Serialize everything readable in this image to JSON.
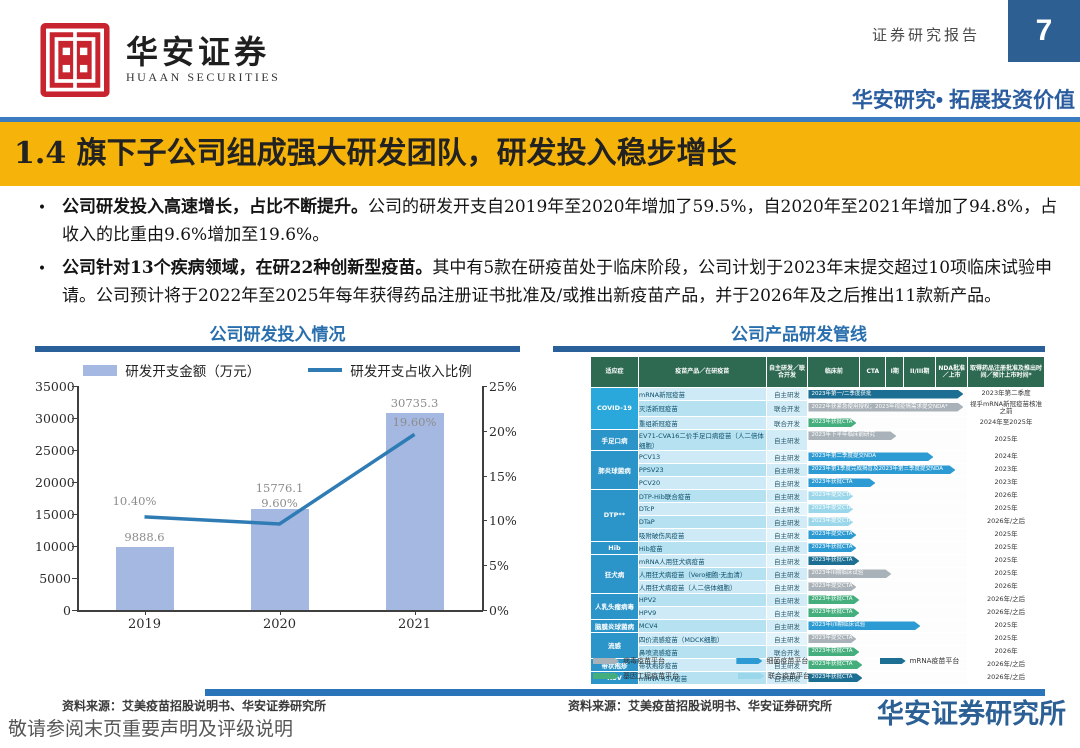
{
  "header": {
    "logo_cn": "华安证券",
    "logo_en": "HUAAN SECURITIES",
    "report_type": "证券研究报告",
    "page_number": "7",
    "tagline": "华安研究• 拓展投资价值"
  },
  "title_banner": "1.4 旗下子公司组成强大研发团队，研发投入稳步增长",
  "bullets": [
    {
      "bold": "公司研发投入高速增长，占比不断提升。",
      "text": "公司的研发开支自2019年至2020年增加了59.5%，自2020年至2021年增加了94.8%，占收入的比重由9.6%增加至19.6%。"
    },
    {
      "bold": "公司针对13个疾病领域，在研22种创新型疫苗。",
      "text": "其中有5款在研疫苗处于临床阶段，公司计划于2023年末提交超过10项临床试验申请。公司预计将于2022年至2025年每年获得药品注册证书批准及/或推出新疫苗产品，并于2026年及之后推出11款新产品。"
    }
  ],
  "chart_data": {
    "type": "bar+line",
    "title": "公司研发投入情况",
    "categories": [
      "2019",
      "2020",
      "2021"
    ],
    "series": [
      {
        "name": "研发开支金额（万元）",
        "type": "bar",
        "values": [
          9888.6,
          15776.1,
          30735.3
        ],
        "color": "#a5b8e1"
      },
      {
        "name": "研发开支占收入比例",
        "type": "line",
        "values": [
          10.4,
          9.6,
          19.6
        ],
        "color": "#2f7cb5"
      }
    ],
    "bar_labels": [
      "9888.6",
      "15776.1",
      "30735.3"
    ],
    "line_labels": [
      "10.40%",
      "9.60%",
      "19.60%"
    ],
    "left_axis": {
      "min": 0,
      "max": 35000,
      "ticks": [
        "0",
        "5000",
        "10000",
        "15000",
        "20000",
        "25000",
        "30000",
        "35000"
      ]
    },
    "right_axis": {
      "min": 0,
      "max": 25,
      "ticks": [
        "0%",
        "5%",
        "10%",
        "15%",
        "20%",
        "25%"
      ]
    },
    "legend_position": "top",
    "grid": false
  },
  "figures": {
    "left": {
      "title": "公司研发投入情况",
      "source": "资料来源：艾美疫苗招股说明书、华安证券研究所"
    },
    "right": {
      "title": "公司产品研发管线",
      "source": "资料来源：艾美疫苗招股说明书、华安证券研究所",
      "platform_colors": {
        "virus": "#a9b2b8",
        "bact": "#2d9bd3",
        "mrna": "#1c6e92",
        "gene": "#44ae7c",
        "combo": "#9bd7ea"
      },
      "group_colors": {
        "first": "#2aa7db",
        "rest": "#2b94c8"
      },
      "legend": [
        {
          "label": "病毒疫苗平台",
          "key": "virus"
        },
        {
          "label": "细菌疫苗平台",
          "key": "bact"
        },
        {
          "label": "mRNA疫苗平台",
          "key": "mrna"
        },
        {
          "label": "基因工程疫苗平台",
          "key": "gene"
        },
        {
          "label": "联合疫苗平台",
          "key": "combo"
        }
      ],
      "table": {
        "headers": [
          "适应症",
          "疫苗产品／在研疫苗",
          "自主研发／联合开发",
          "临床前",
          "CTA",
          "I期",
          "II/III期",
          "NDA批准／上市",
          "取得药品注册批准及推出时间／预计上市时间*"
        ],
        "rows": [
          {
            "group": "COVID-19",
            "group_span": 3,
            "product": "mRNA新冠疫苗",
            "mode": "自主研发",
            "platform": "mrna",
            "progress": 0.97,
            "stage_label": "2023年第一/二季度获批",
            "timing": "2023年第二季度"
          },
          {
            "product": "灭活新冠疫苗",
            "mode": "联合开发",
            "platform": "virus",
            "progress": 0.97,
            "stage_label": "2022年获紧急使用授权；2023年视疫情需求提交NDA*",
            "timing": "视乎mRNA新冠疫苗核准之前"
          },
          {
            "product": "重组新冠疫苗",
            "mode": "联合开发",
            "platform": "gene",
            "progress": 0.3,
            "stage_label": "2023年获批CTA",
            "timing": "2024年至2025年"
          },
          {
            "group": "手足口病",
            "group_span": 1,
            "product": "EV71-CVA16二价手足口病疫苗（人二倍体细胞）",
            "mode": "自主研发",
            "platform": "virus",
            "progress": 0.55,
            "stage_label": "2023年下半年临床前研究",
            "timing": "2025年"
          },
          {
            "group": "肺炎球菌病",
            "group_span": 3,
            "product": "PCV13",
            "mode": "自主研发",
            "platform": "bact",
            "progress": 0.78,
            "stage_label": "2023年第二季度提交NDA",
            "timing": "2024年"
          },
          {
            "product": "PPSV23",
            "mode": "自主研发",
            "platform": "bact",
            "progress": 0.92,
            "stage_label": "2023年第1季度完成揭盲及2023年第三季度提交NDA",
            "timing": "2023年"
          },
          {
            "product": "PCV20",
            "mode": "自主研发",
            "platform": "bact",
            "progress": 0.42,
            "stage_label": "2023年获批CTA",
            "timing": "2023年"
          },
          {
            "group": "DTP**",
            "group_span": 4,
            "product": "DTP-Hib联合疫苗",
            "mode": "自主研发",
            "platform": "combo",
            "progress": 0.28,
            "stage_label": "2023年提交CTA",
            "timing": "2026年"
          },
          {
            "product": "DTcP",
            "mode": "自主研发",
            "platform": "combo",
            "progress": 0.28,
            "stage_label": "2023年提交CTA",
            "timing": "2025年"
          },
          {
            "product": "DTaP",
            "mode": "自主研发",
            "platform": "combo",
            "progress": 0.28,
            "stage_label": "2023年提交CTA",
            "timing": "2026年/之后"
          },
          {
            "product": "吸附破伤风疫苗",
            "mode": "自主研发",
            "platform": "bact",
            "progress": 0.3,
            "stage_label": "2023年提交CTA",
            "timing": "2025年"
          },
          {
            "group": "Hib",
            "group_span": 1,
            "product": "Hib疫苗",
            "mode": "自主研发",
            "platform": "bact",
            "progress": 0.3,
            "stage_label": "2023年获批CTA",
            "timing": "2025年"
          },
          {
            "group": "狂犬病",
            "group_span": 3,
            "product": "mRNA人用狂犬病疫苗",
            "mode": "自主研发",
            "platform": "mrna",
            "progress": 0.32,
            "stage_label": "2023年获批CTA",
            "timing": "2025年"
          },
          {
            "product": "人用狂犬病疫苗（Vero细胞·无血清）",
            "mode": "自主研发",
            "platform": "virus",
            "progress": 0.52,
            "stage_label": "2023年III期临床试验",
            "timing": "2025年"
          },
          {
            "product": "人用狂犬病疫苗（人二倍体细胞）",
            "mode": "自主研发",
            "platform": "virus",
            "progress": 0.3,
            "stage_label": "2023年提交CTA",
            "timing": "2026年"
          },
          {
            "group": "人乳头瘤病毒",
            "group_span": 2,
            "product": "HPV2",
            "mode": "自主研发",
            "platform": "gene",
            "progress": 0.32,
            "stage_label": "2023年获批CTA",
            "timing": "2026年/之后"
          },
          {
            "product": "HPV9",
            "mode": "自主研发",
            "platform": "gene",
            "progress": 0.32,
            "stage_label": "2023年获批CTA",
            "timing": "2026年/之后"
          },
          {
            "group": "脑膜炎球菌病",
            "group_span": 1,
            "product": "MCV4",
            "mode": "自主研发",
            "platform": "bact",
            "progress": 0.7,
            "stage_label": "2023年I/II期临床试验",
            "timing": "2025年"
          },
          {
            "group": "流感",
            "group_span": 2,
            "product": "四价流感疫苗（MDCK细胞）",
            "mode": "自主研发",
            "platform": "virus",
            "progress": 0.3,
            "stage_label": "2023年提交CTA",
            "timing": "2025年"
          },
          {
            "product": "鼻喷流感疫苗",
            "mode": "联合开发",
            "platform": "gene",
            "progress": 0.32,
            "stage_label": "2023年获批CTA",
            "timing": "2026年"
          },
          {
            "group": "带状疱疹",
            "group_span": 1,
            "product": "带状疱疹疫苗",
            "mode": "自主研发",
            "platform": "gene",
            "progress": 0.34,
            "stage_label": "2023年获批CTA",
            "timing": "2026年/之后"
          },
          {
            "group": "RSV",
            "group_span": 1,
            "product": "mRNA RSV疫苗",
            "mode": "自主研发",
            "platform": "mrna",
            "progress": 0.34,
            "stage_label": "2023年获批CTA",
            "timing": "2026年/之后"
          }
        ]
      }
    }
  },
  "footer": {
    "disclaimer": "敬请参阅末页重要声明及评级说明",
    "brand": "华安证券研究所"
  }
}
